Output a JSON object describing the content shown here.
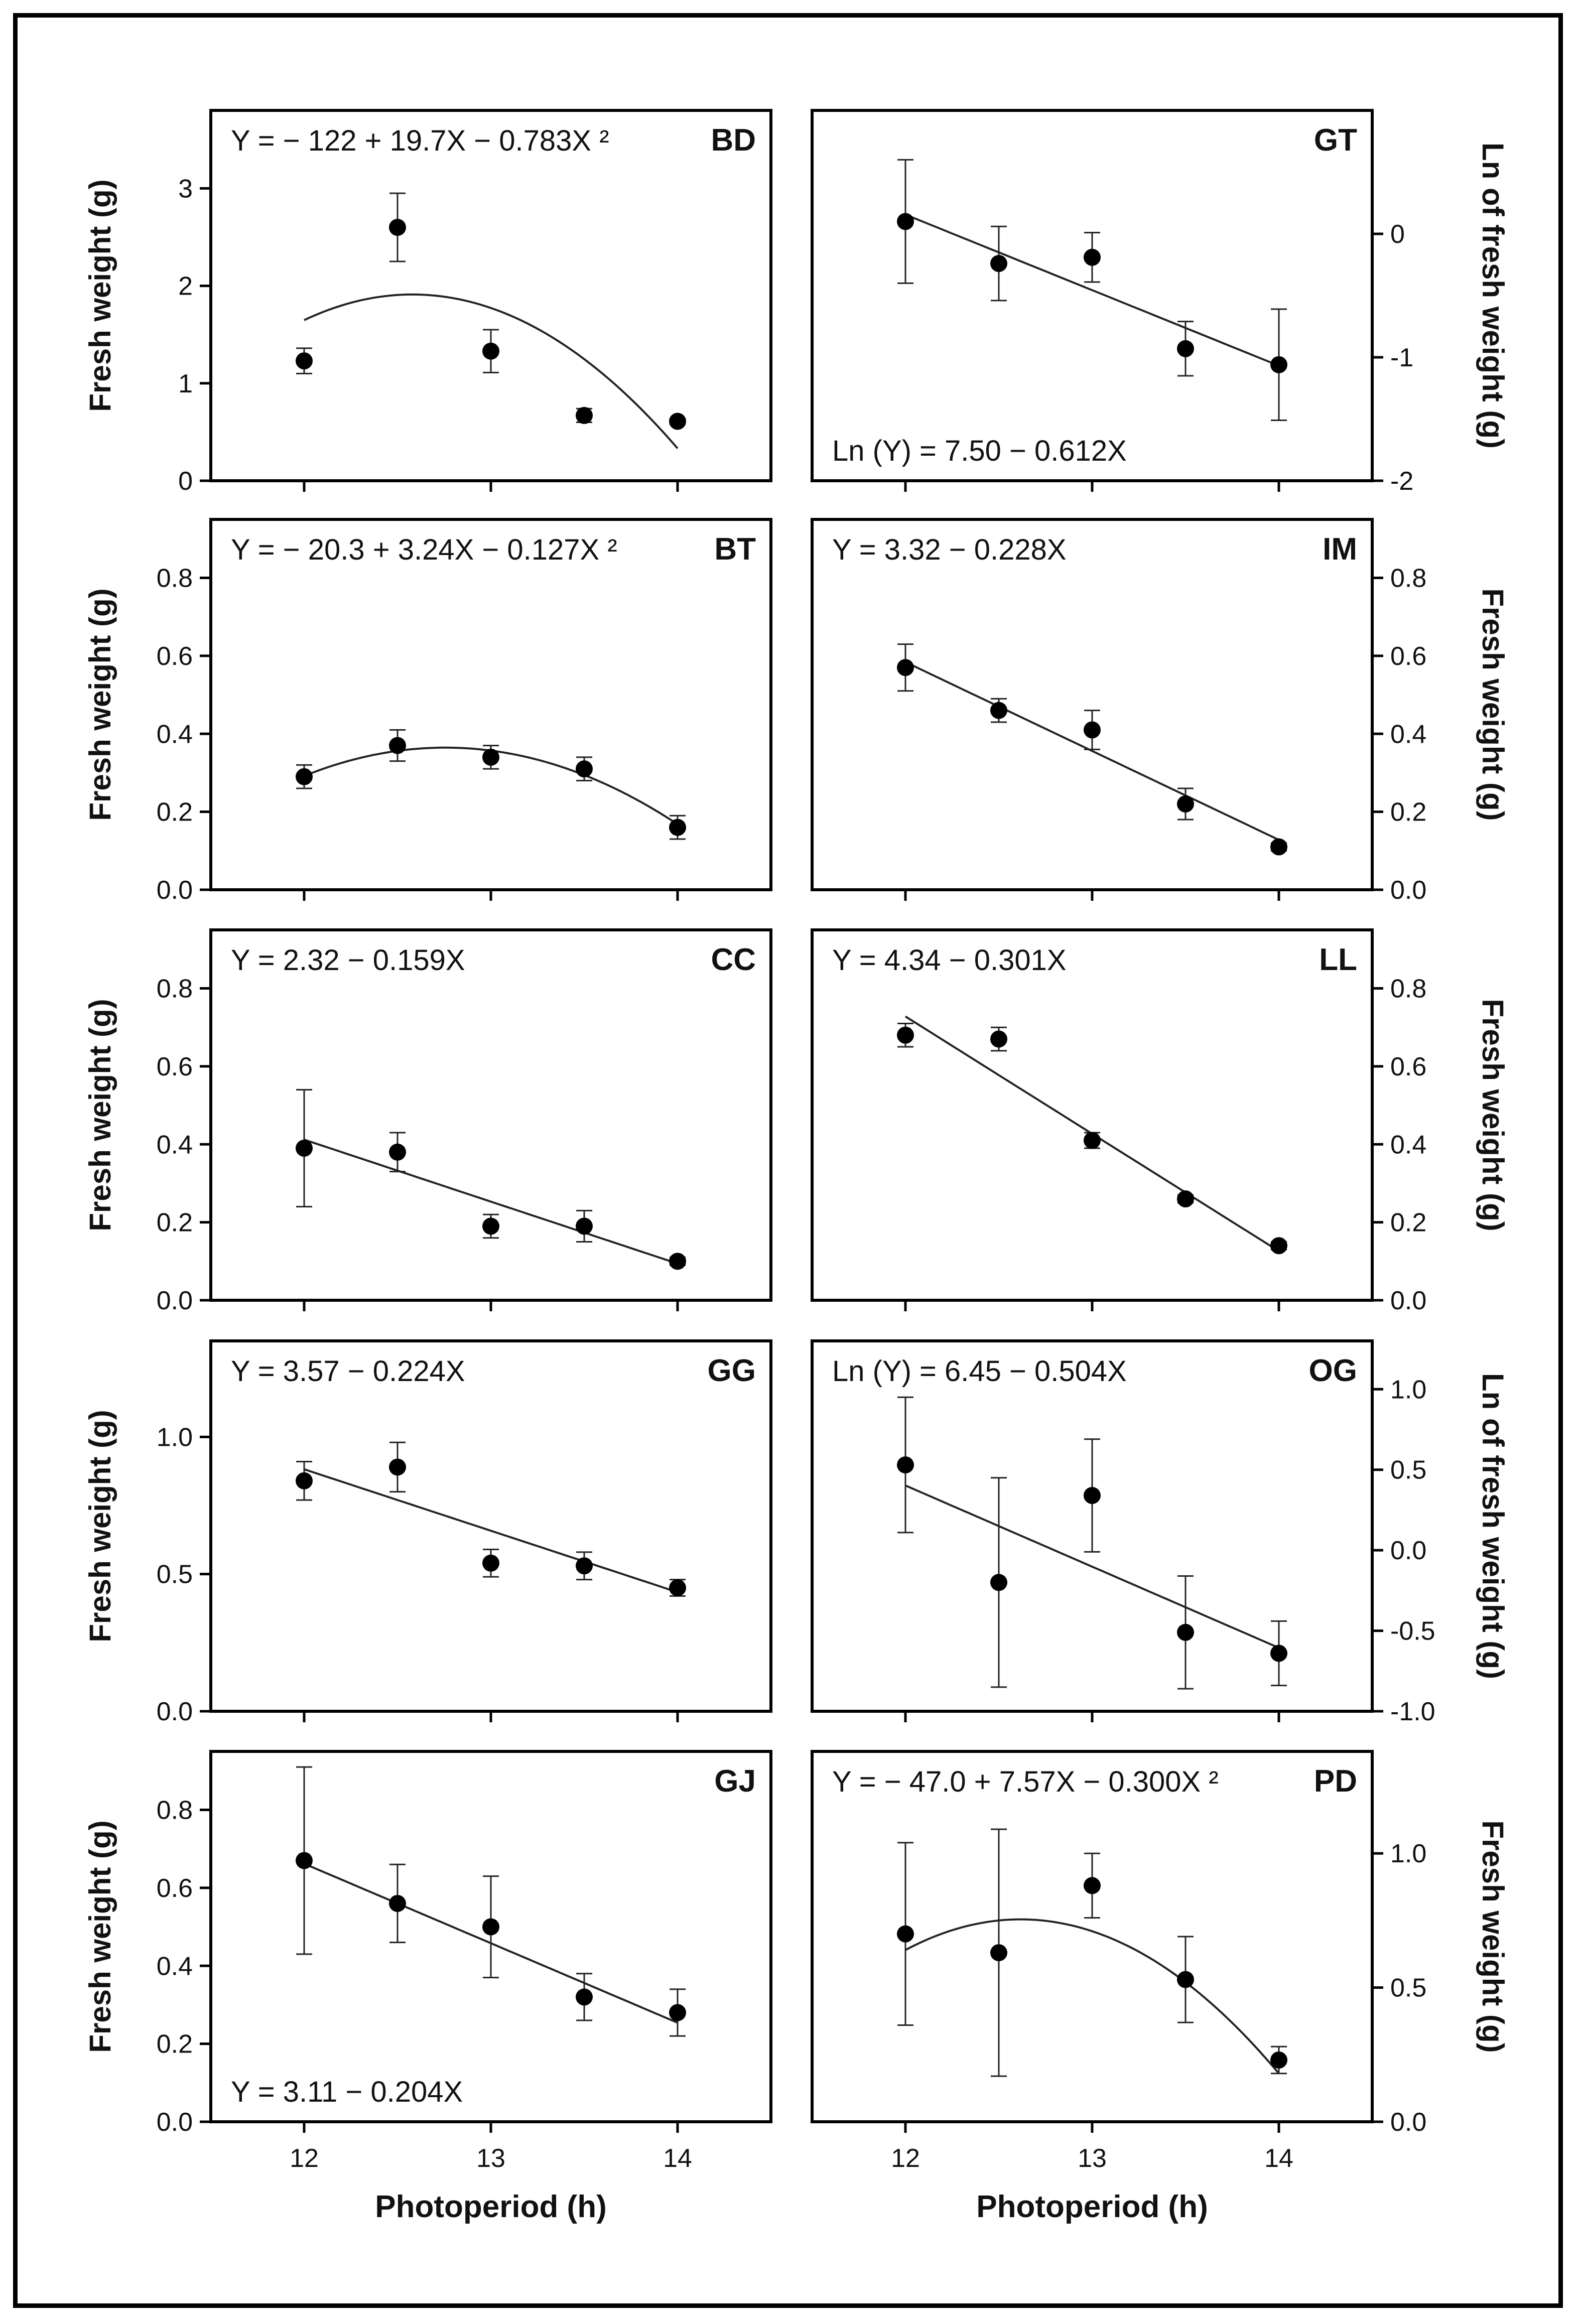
{
  "x_axis": {
    "label": "Photoperiod (h)",
    "ticks": [
      12,
      13,
      14
    ],
    "tick_labels": [
      "12",
      "13",
      "14"
    ]
  },
  "chart_data": [
    {
      "type": "scatter",
      "code": "BD",
      "equation": "Y = − 122 + 19.7X − 0.783X ²",
      "ylabel": "Fresh weight (g)",
      "y_side": "left",
      "ylim": [
        0,
        3.8
      ],
      "yticks": [
        0,
        1,
        2,
        3
      ],
      "ytick_labels": [
        "0",
        "1",
        "2",
        "3"
      ],
      "x": [
        12,
        12.5,
        13,
        13.5,
        14
      ],
      "y": [
        1.23,
        2.6,
        1.33,
        0.67,
        0.61
      ],
      "err": [
        0.13,
        0.35,
        0.22,
        0.07,
        0.03
      ],
      "fit": {
        "kind": "poly",
        "coef": [
          -122,
          19.7,
          -0.783
        ],
        "range": [
          12,
          14
        ]
      }
    },
    {
      "type": "scatter",
      "code": "GT",
      "equation": "Ln (Y) = 7.50 − 0.612X",
      "ylabel": "Ln of fresh weight (g)",
      "y_side": "right",
      "ylim": [
        -2,
        1
      ],
      "yticks": [
        -2,
        -1,
        0
      ],
      "ytick_labels": [
        "-2",
        "-1",
        "0"
      ],
      "x": [
        12,
        12.5,
        13,
        13.5,
        14
      ],
      "y": [
        0.1,
        -0.24,
        -0.19,
        -0.93,
        -1.06
      ],
      "err": [
        0.5,
        0.3,
        0.2,
        0.22,
        0.45
      ],
      "fit": {
        "kind": "poly",
        "coef": [
          7.5,
          -0.612,
          0
        ],
        "range": [
          12,
          14
        ]
      }
    },
    {
      "type": "scatter",
      "code": "BT",
      "equation": "Y = − 20.3 + 3.24X − 0.127X ²",
      "ylabel": "Fresh weight (g)",
      "y_side": "left",
      "ylim": [
        0,
        0.95
      ],
      "yticks": [
        0,
        0.2,
        0.4,
        0.6,
        0.8
      ],
      "ytick_labels": [
        "0.0",
        "0.2",
        "0.4",
        "0.6",
        "0.8"
      ],
      "x": [
        12,
        12.5,
        13,
        13.5,
        14
      ],
      "y": [
        0.29,
        0.37,
        0.34,
        0.31,
        0.16
      ],
      "err": [
        0.03,
        0.04,
        0.03,
        0.03,
        0.03
      ],
      "fit": {
        "kind": "poly",
        "coef": [
          -20.3,
          3.24,
          -0.127
        ],
        "range": [
          12,
          14
        ]
      }
    },
    {
      "type": "scatter",
      "code": "IM",
      "equation": "Y = 3.32 − 0.228X",
      "ylabel": "Fresh weight (g)",
      "y_side": "right",
      "ylim": [
        0,
        0.95
      ],
      "yticks": [
        0,
        0.2,
        0.4,
        0.6,
        0.8
      ],
      "ytick_labels": [
        "0.0",
        "0.2",
        "0.4",
        "0.6",
        "0.8"
      ],
      "x": [
        12,
        12.5,
        13,
        13.5,
        14
      ],
      "y": [
        0.57,
        0.46,
        0.41,
        0.22,
        0.11
      ],
      "err": [
        0.06,
        0.03,
        0.05,
        0.04,
        0.01
      ],
      "fit": {
        "kind": "poly",
        "coef": [
          3.32,
          -0.228,
          0
        ],
        "range": [
          12,
          14
        ]
      }
    },
    {
      "type": "scatter",
      "code": "CC",
      "equation": "Y = 2.32 − 0.159X",
      "ylabel": "Fresh weight (g)",
      "y_side": "left",
      "ylim": [
        0,
        0.95
      ],
      "yticks": [
        0,
        0.2,
        0.4,
        0.6,
        0.8
      ],
      "ytick_labels": [
        "0.0",
        "0.2",
        "0.4",
        "0.6",
        "0.8"
      ],
      "x": [
        12,
        12.5,
        13,
        13.5,
        14
      ],
      "y": [
        0.39,
        0.38,
        0.19,
        0.19,
        0.1
      ],
      "err": [
        0.15,
        0.05,
        0.03,
        0.04,
        0.01
      ],
      "fit": {
        "kind": "poly",
        "coef": [
          2.32,
          -0.159,
          0
        ],
        "range": [
          12,
          14
        ]
      }
    },
    {
      "type": "scatter",
      "code": "LL",
      "equation": "Y = 4.34 − 0.301X",
      "ylabel": "Fresh weight (g)",
      "y_side": "right",
      "ylim": [
        0,
        0.95
      ],
      "yticks": [
        0,
        0.2,
        0.4,
        0.6,
        0.8
      ],
      "ytick_labels": [
        "0.0",
        "0.2",
        "0.4",
        "0.6",
        "0.8"
      ],
      "x": [
        12,
        12.5,
        13,
        13.5,
        14
      ],
      "y": [
        0.68,
        0.67,
        0.41,
        0.26,
        0.14
      ],
      "err": [
        0.03,
        0.03,
        0.02,
        0.01,
        0.01
      ],
      "fit": {
        "kind": "poly",
        "coef": [
          4.34,
          -0.301,
          0
        ],
        "range": [
          12,
          14
        ]
      }
    },
    {
      "type": "scatter",
      "code": "GG",
      "equation": "Y = 3.57 − 0.224X",
      "ylabel": "Fresh weight (g)",
      "y_side": "left",
      "ylim": [
        0,
        1.35
      ],
      "yticks": [
        0,
        0.5,
        1.0
      ],
      "ytick_labels": [
        "0.0",
        "0.5",
        "1.0"
      ],
      "x": [
        12,
        12.5,
        13,
        13.5,
        14
      ],
      "y": [
        0.84,
        0.89,
        0.54,
        0.53,
        0.45
      ],
      "err": [
        0.07,
        0.09,
        0.05,
        0.05,
        0.03
      ],
      "fit": {
        "kind": "poly",
        "coef": [
          3.57,
          -0.224,
          0
        ],
        "range": [
          12,
          14
        ]
      }
    },
    {
      "type": "scatter",
      "code": "OG",
      "equation": "Ln (Y) = 6.45 − 0.504X",
      "ylabel": "Ln of fresh weight (g)",
      "y_side": "right",
      "ylim": [
        -1,
        1.3
      ],
      "yticks": [
        -1,
        -0.5,
        0,
        0.5,
        1.0
      ],
      "ytick_labels": [
        "-1.0",
        "-0.5",
        "0.0",
        "0.5",
        "1.0"
      ],
      "x": [
        12,
        12.5,
        13,
        13.5,
        14
      ],
      "y": [
        0.53,
        -0.2,
        0.34,
        -0.51,
        -0.64
      ],
      "err": [
        0.42,
        0.65,
        0.35,
        0.35,
        0.2
      ],
      "fit": {
        "kind": "poly",
        "coef": [
          6.45,
          -0.504,
          0
        ],
        "range": [
          12,
          14
        ]
      }
    },
    {
      "type": "scatter",
      "code": "GJ",
      "equation": "Y = 3.11 − 0.204X",
      "ylabel": "Fresh weight (g)",
      "y_side": "left",
      "ylim": [
        0,
        0.95
      ],
      "yticks": [
        0,
        0.2,
        0.4,
        0.6,
        0.8
      ],
      "ytick_labels": [
        "0.0",
        "0.2",
        "0.4",
        "0.6",
        "0.8"
      ],
      "x": [
        12,
        12.5,
        13,
        13.5,
        14
      ],
      "y": [
        0.67,
        0.56,
        0.5,
        0.32,
        0.28
      ],
      "err": [
        0.24,
        0.1,
        0.13,
        0.06,
        0.06
      ],
      "fit": {
        "kind": "poly",
        "coef": [
          3.11,
          -0.204,
          0
        ],
        "range": [
          12,
          14
        ]
      }
    },
    {
      "type": "scatter",
      "code": "PD",
      "equation": "Y = − 47.0 + 7.57X − 0.300X ²",
      "ylabel": "Fresh weight (g)",
      "y_side": "right",
      "ylim": [
        0,
        1.38
      ],
      "yticks": [
        0,
        0.5,
        1.0
      ],
      "ytick_labels": [
        "0.0",
        "0.5",
        "1.0"
      ],
      "x": [
        12,
        12.5,
        13,
        13.5,
        14
      ],
      "y": [
        0.7,
        0.63,
        0.88,
        0.53,
        0.23
      ],
      "err": [
        0.34,
        0.46,
        0.12,
        0.16,
        0.05
      ],
      "fit": {
        "kind": "poly",
        "coef": [
          -47.0,
          7.57,
          -0.3
        ],
        "range": [
          12,
          14
        ]
      }
    }
  ]
}
